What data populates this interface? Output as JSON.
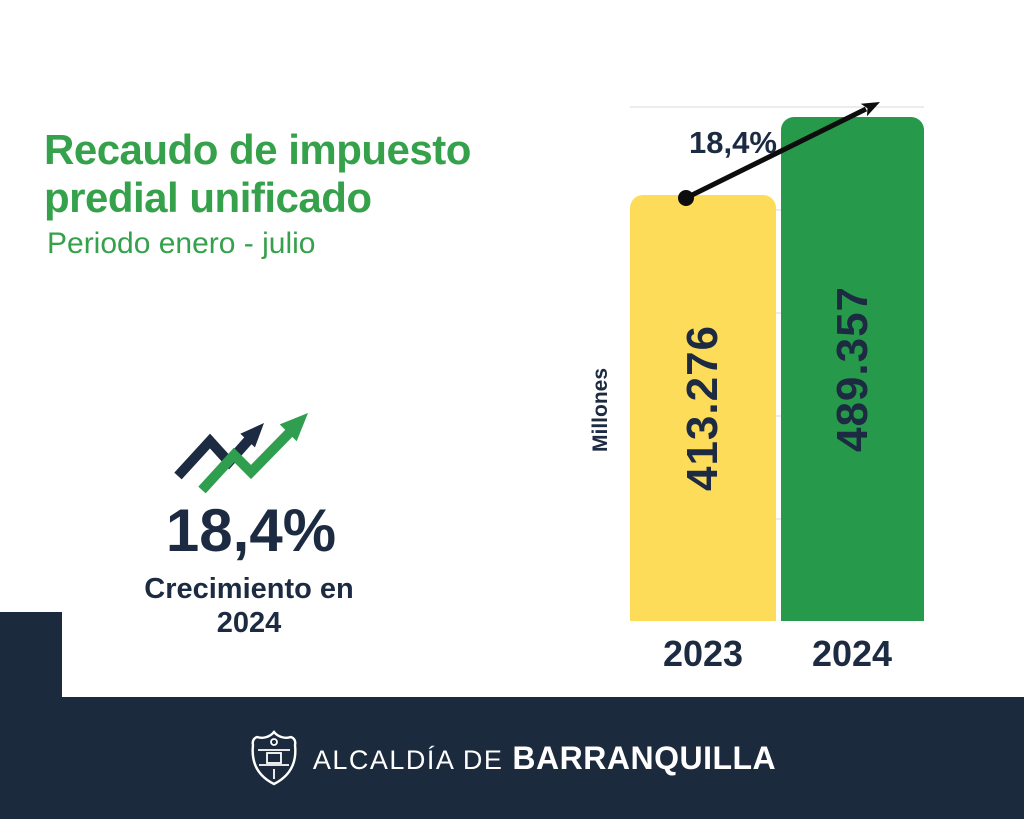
{
  "header": {
    "title_line1": "Recaudo de impuesto",
    "title_line2": "predial unificado",
    "subtitle": "Periodo enero - julio"
  },
  "highlight": {
    "growth_value": "18,4%",
    "caption_line1": "Crecimiento en",
    "caption_line2": "2024",
    "icon": "growth-trend-icon"
  },
  "chart_data": {
    "type": "bar",
    "title": "Recaudo de impuesto predial unificado",
    "subtitle": "Periodo enero - julio",
    "categories": [
      "2023",
      "2024"
    ],
    "values": [
      413276,
      489357
    ],
    "value_labels": [
      "413.276",
      "489.357"
    ],
    "bar_colors": [
      "#FDDC5A",
      "#27994B"
    ],
    "ylabel": "Millones",
    "ylim": [
      0,
      500000
    ],
    "gridlines": [
      100000,
      200000,
      300000,
      400000,
      500000
    ],
    "grid_on": true,
    "legend": "none",
    "annotation": {
      "label": "18,4%",
      "meaning": "growth arrow from top of 2023 bar to top of 2024 bar"
    }
  },
  "footer": {
    "org_prefix": "ALCALDÍA DE",
    "org_name": "BARRANQUILLA",
    "logo": "barranquilla-crest-icon"
  },
  "colors": {
    "title_green": "#35A14B",
    "bar_green": "#27994B",
    "bar_yellow": "#FDDC5A",
    "text_navy": "#1D2B42",
    "footer_navy": "#1B2A3C",
    "gridline": "#ECECEC",
    "arrow_black": "#0D0D0D"
  }
}
